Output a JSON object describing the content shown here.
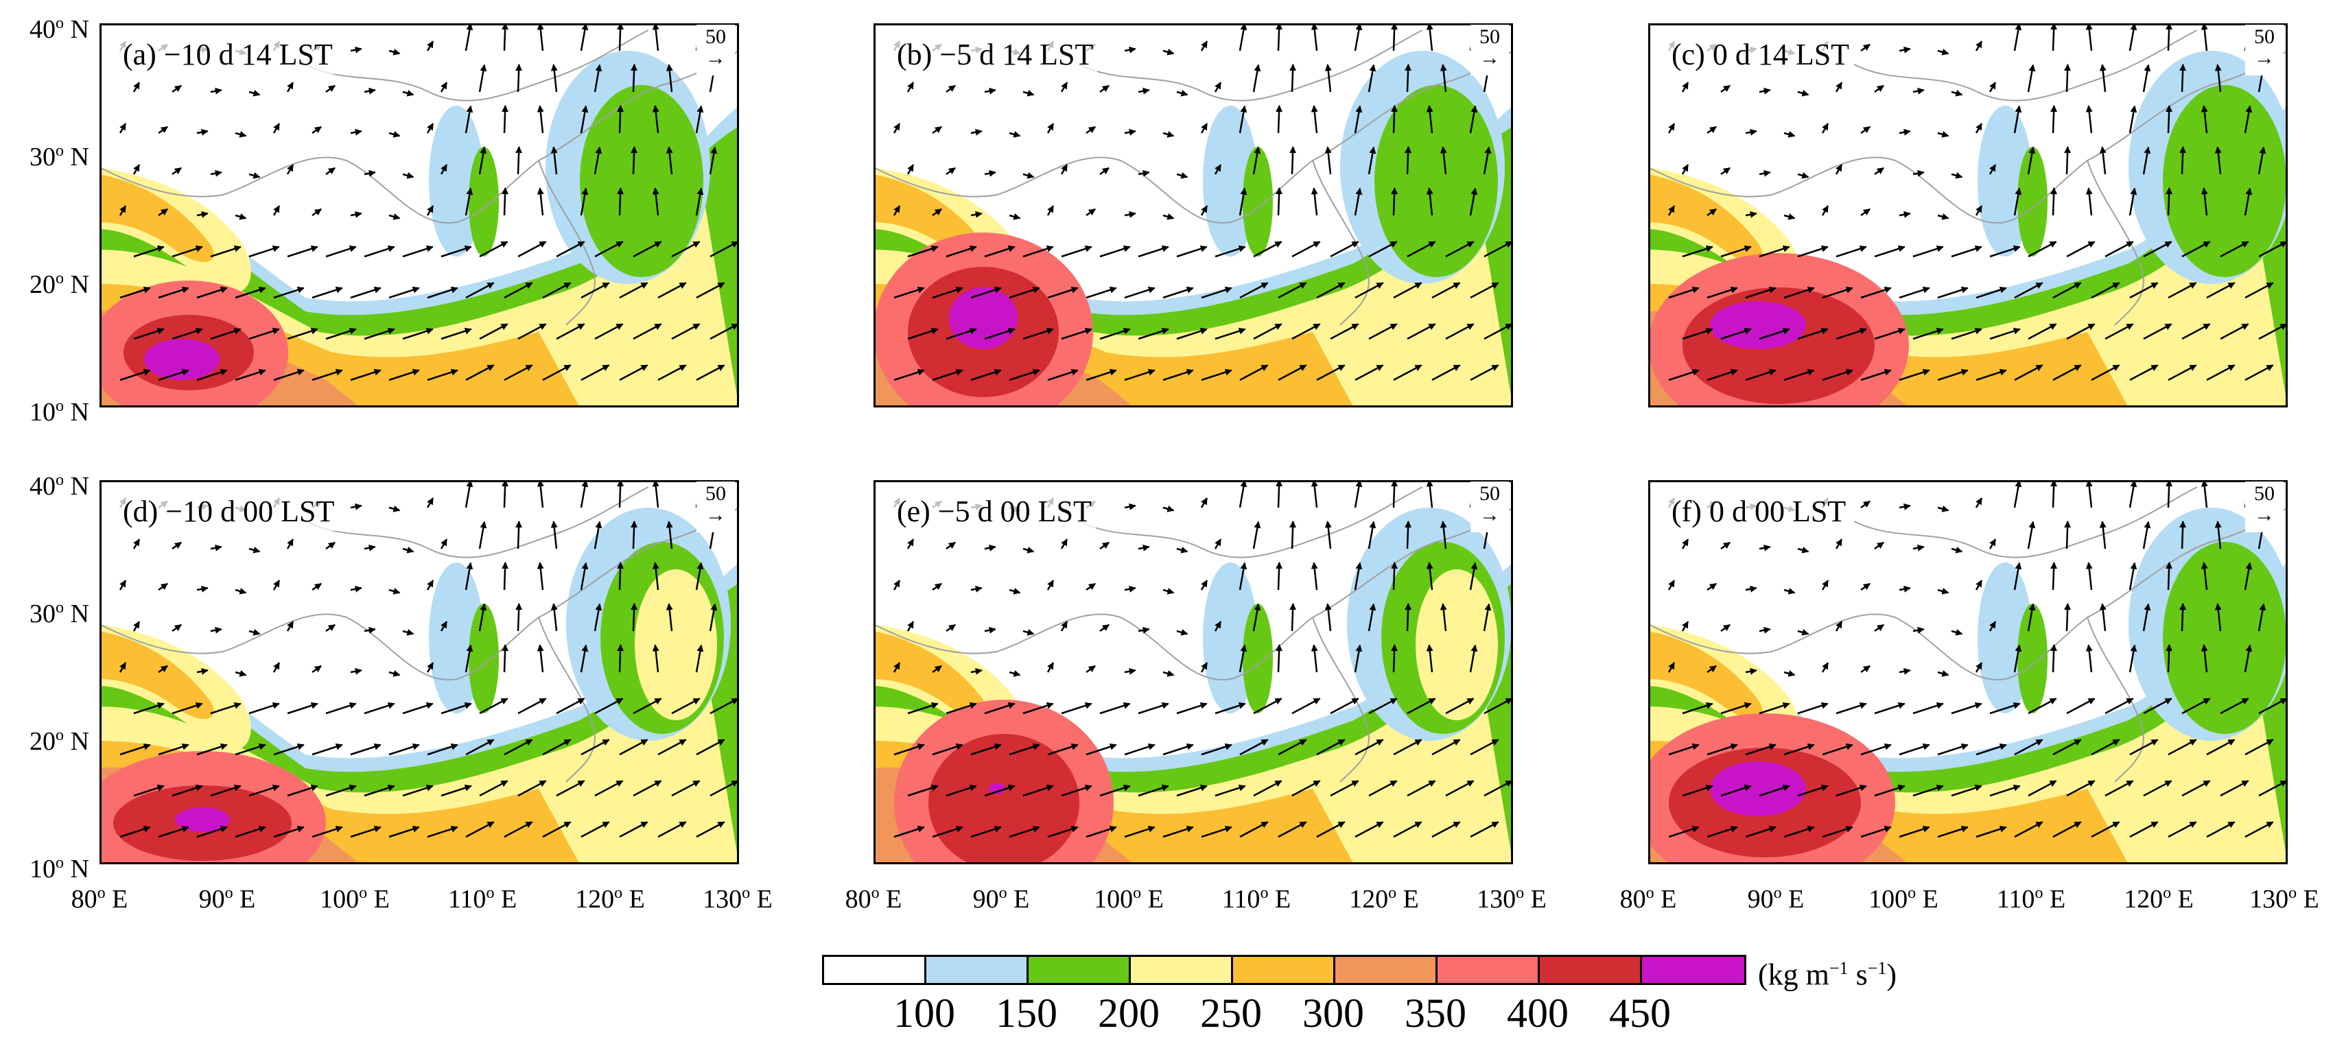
{
  "figure": {
    "panels": [
      {
        "id": "a",
        "label": "(a) −10 d 14 LST"
      },
      {
        "id": "b",
        "label": "(b) −5 d 14 LST"
      },
      {
        "id": "c",
        "label": "(c) 0 d 14 LST"
      },
      {
        "id": "d",
        "label": "(d) −10 d 00 LST"
      },
      {
        "id": "e",
        "label": "(e) −5 d 00 LST"
      },
      {
        "id": "f",
        "label": "(f) 0 d 00 LST"
      }
    ],
    "reference_vector": {
      "value": "50",
      "arrow": "→"
    },
    "latitude_labels": [
      "40",
      "30",
      "20",
      "10"
    ],
    "latitude_suffix": " N",
    "longitude_labels": [
      "80",
      "90",
      "100",
      "110",
      "120",
      "130"
    ],
    "longitude_suffix": " E",
    "degree_mark": "o",
    "colorbar": {
      "ticks": [
        "100",
        "150",
        "200",
        "250",
        "300",
        "350",
        "400",
        "450"
      ],
      "unit": {
        "base": "(kg m",
        "exp1": "−1",
        "mid": " s",
        "exp2": "−1",
        "end": ")"
      },
      "colors": [
        "#ffffff",
        "#b4dcf5",
        "#66c814",
        "#fff596",
        "#fcbe32",
        "#f0965a",
        "#fa6e6e",
        "#d22d32",
        "#c814c8"
      ]
    }
  }
}
